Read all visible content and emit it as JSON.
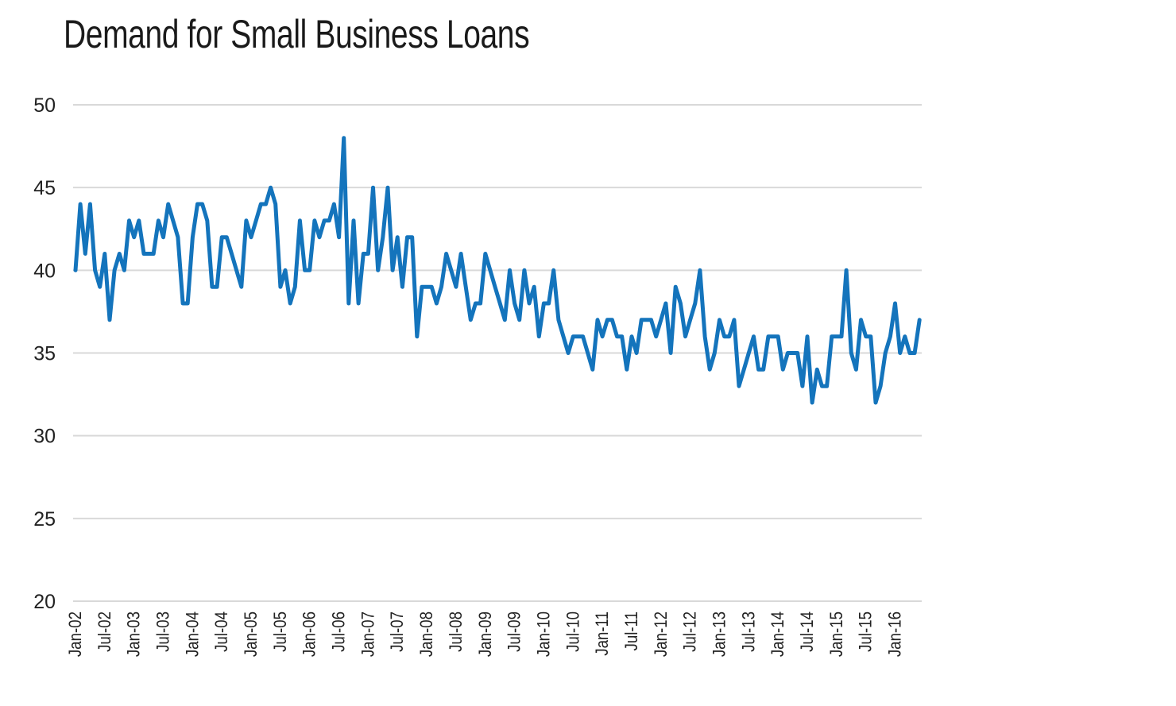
{
  "chart_data": {
    "type": "line",
    "title": "Demand for Small Business Loans",
    "xlabel": "",
    "ylabel": "",
    "ylim": [
      20,
      50
    ],
    "yticks": [
      20,
      25,
      30,
      35,
      40,
      45,
      50
    ],
    "grid": true,
    "x_start": "Jan-02",
    "x_end": "Jun-16",
    "x_frequency": "monthly",
    "xtick_labels": [
      "Jan-02",
      "Jul-02",
      "Jan-03",
      "Jul-03",
      "Jan-04",
      "Jul-04",
      "Jan-05",
      "Jul-05",
      "Jan-06",
      "Jul-06",
      "Jan-07",
      "Jul-07",
      "Jan-08",
      "Jul-08",
      "Jan-09",
      "Jul-09",
      "Jan-10",
      "Jul-10",
      "Jan-11",
      "Jul-11",
      "Jan-12",
      "Jul-12",
      "Jan-13",
      "Jul-13",
      "Jan-14",
      "Jul-14",
      "Jan-15",
      "Jul-15",
      "Jan-16"
    ],
    "series": [
      {
        "color": "#1474bc",
        "values": [
          40,
          44,
          41,
          44,
          40,
          39,
          41,
          37,
          40,
          41,
          40,
          43,
          42,
          43,
          41,
          41,
          41,
          43,
          42,
          44,
          43,
          42,
          38,
          38,
          42,
          44,
          44,
          43,
          39,
          39,
          42,
          42,
          41,
          40,
          39,
          43,
          42,
          43,
          44,
          44,
          45,
          44,
          39,
          40,
          38,
          39,
          43,
          40,
          40,
          43,
          42,
          43,
          43,
          44,
          42,
          48,
          38,
          43,
          38,
          41,
          41,
          45,
          40,
          42,
          45,
          40,
          42,
          39,
          42,
          42,
          36,
          39,
          39,
          39,
          38,
          39,
          41,
          40,
          39,
          41,
          39,
          37,
          38,
          38,
          41,
          40,
          39,
          38,
          37,
          40,
          38,
          37,
          40,
          38,
          39,
          36,
          38,
          38,
          40,
          37,
          36,
          35,
          36,
          36,
          36,
          35,
          34,
          37,
          36,
          37,
          37,
          36,
          36,
          34,
          36,
          35,
          37,
          37,
          37,
          36,
          37,
          38,
          35,
          39,
          38,
          36,
          37,
          38,
          40,
          36,
          34,
          35,
          37,
          36,
          36,
          37,
          33,
          34,
          35,
          36,
          34,
          34,
          36,
          36,
          36,
          34,
          35,
          35,
          35,
          33,
          36,
          32,
          34,
          33,
          33,
          36,
          36,
          36,
          40,
          35,
          34,
          37,
          36,
          36,
          32,
          33,
          35,
          36,
          38,
          35,
          36,
          35,
          35,
          37
        ]
      }
    ]
  }
}
